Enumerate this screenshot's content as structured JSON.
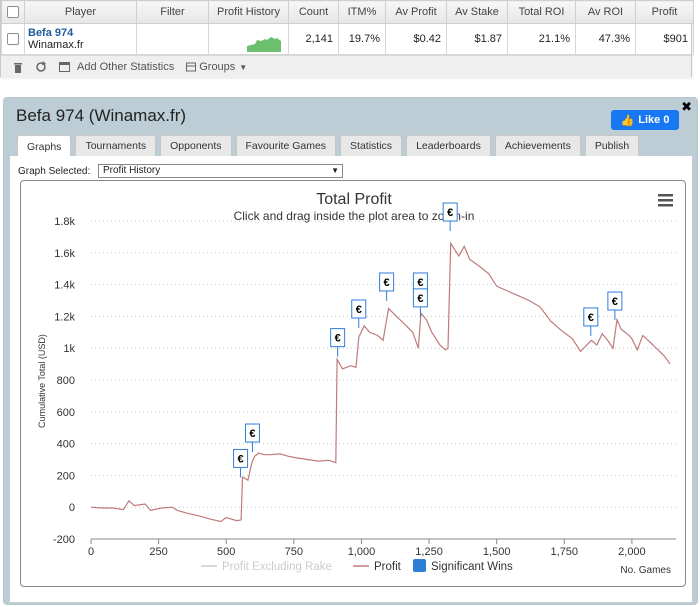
{
  "top_table": {
    "headers": [
      "Player",
      "Filter",
      "Profit History",
      "Count",
      "ITM%",
      "Av Profit",
      "Av Stake",
      "Total ROI",
      "Av ROI",
      "Profit"
    ],
    "row": {
      "player_name": "Befa 974",
      "player_site": "Winamax.fr",
      "filter": "",
      "count": "2,141",
      "itm": "19.7%",
      "av_profit": "$0.42",
      "av_stake": "$1.87",
      "total_roi": "21.1%",
      "av_roi": "47.3%",
      "profit": "$901"
    },
    "sparkline_color": "#5cb85c"
  },
  "footer": {
    "add_stats_label": "Add Other Statistics",
    "groups_label": "Groups"
  },
  "panel": {
    "title": "Befa 974 (Winamax.fr)",
    "like_label": "Like 0",
    "tabs": [
      "Graphs",
      "Tournaments",
      "Opponents",
      "Favourite Games",
      "Statistics",
      "Leaderboards",
      "Achievements",
      "Publish"
    ],
    "active_tab": "Graphs",
    "graph_selected_label": "Graph Selected:",
    "graph_selected_value": "Profit History"
  },
  "chart_data": {
    "type": "line",
    "title": "Total Profit",
    "subtitle": "Click and drag inside the plot area to zoom-in",
    "ylabel": "Cumulative Total (USD)",
    "xlabel": "No. Games",
    "xlim": [
      0,
      2200
    ],
    "ylim": [
      -200,
      1800
    ],
    "x_ticks": [
      0,
      250,
      500,
      750,
      1000,
      1250,
      1500,
      1750,
      2000
    ],
    "x_tick_labels": [
      "0",
      "250",
      "500",
      "750",
      "1,000",
      "1,250",
      "1,500",
      "1,750",
      "2,000"
    ],
    "y_ticks": [
      -200,
      0,
      200,
      400,
      600,
      800,
      1000,
      1200,
      1400,
      1600,
      1800
    ],
    "y_tick_labels": [
      "-200",
      "0",
      "200",
      "400",
      "600",
      "800",
      "1k",
      "1.2k",
      "1.4k",
      "1.6k",
      "1.8k"
    ],
    "grid": true,
    "legend": [
      "Profit Excluding Rake",
      "Profit",
      "Significant Wins"
    ],
    "series": [
      {
        "name": "Profit",
        "color": "#c07a7a",
        "points": [
          [
            0,
            0
          ],
          [
            40,
            -5
          ],
          [
            80,
            -5
          ],
          [
            120,
            -15
          ],
          [
            140,
            40
          ],
          [
            160,
            10
          ],
          [
            200,
            20
          ],
          [
            220,
            -20
          ],
          [
            260,
            -5
          ],
          [
            300,
            0
          ],
          [
            320,
            -20
          ],
          [
            360,
            -40
          ],
          [
            400,
            -55
          ],
          [
            440,
            -75
          ],
          [
            480,
            -90
          ],
          [
            500,
            -65
          ],
          [
            540,
            -85
          ],
          [
            555,
            -80
          ],
          [
            560,
            190
          ],
          [
            580,
            170
          ],
          [
            595,
            280
          ],
          [
            605,
            320
          ],
          [
            620,
            340
          ],
          [
            640,
            330
          ],
          [
            660,
            330
          ],
          [
            700,
            335
          ],
          [
            730,
            320
          ],
          [
            760,
            310
          ],
          [
            800,
            300
          ],
          [
            840,
            290
          ],
          [
            880,
            295
          ],
          [
            905,
            280
          ],
          [
            910,
            930
          ],
          [
            930,
            870
          ],
          [
            960,
            890
          ],
          [
            980,
            880
          ],
          [
            990,
            1070
          ],
          [
            1010,
            1140
          ],
          [
            1030,
            1100
          ],
          [
            1060,
            1080
          ],
          [
            1080,
            1050
          ],
          [
            1100,
            1250
          ],
          [
            1130,
            1200
          ],
          [
            1160,
            1150
          ],
          [
            1190,
            1100
          ],
          [
            1210,
            1000
          ],
          [
            1220,
            1220
          ],
          [
            1240,
            1180
          ],
          [
            1260,
            1100
          ],
          [
            1290,
            1020
          ],
          [
            1310,
            990
          ],
          [
            1320,
            1000
          ],
          [
            1330,
            1660
          ],
          [
            1360,
            1580
          ],
          [
            1380,
            1640
          ],
          [
            1400,
            1560
          ],
          [
            1440,
            1510
          ],
          [
            1470,
            1470
          ],
          [
            1500,
            1390
          ],
          [
            1540,
            1360
          ],
          [
            1580,
            1330
          ],
          [
            1620,
            1300
          ],
          [
            1660,
            1260
          ],
          [
            1700,
            1170
          ],
          [
            1740,
            1110
          ],
          [
            1780,
            1060
          ],
          [
            1810,
            980
          ],
          [
            1850,
            1050
          ],
          [
            1870,
            1020
          ],
          [
            1890,
            1090
          ],
          [
            1910,
            1050
          ],
          [
            1930,
            1000
          ],
          [
            1945,
            1180
          ],
          [
            1960,
            1120
          ],
          [
            1990,
            1080
          ],
          [
            2000,
            1060
          ],
          [
            2020,
            990
          ],
          [
            2040,
            1080
          ],
          [
            2060,
            1050
          ],
          [
            2090,
            1000
          ],
          [
            2120,
            950
          ],
          [
            2141,
            901
          ]
        ]
      }
    ],
    "significant_wins": [
      [
        553,
        250
      ],
      [
        597,
        410
      ],
      [
        912,
        1010
      ],
      [
        990,
        1190
      ],
      [
        1093,
        1360
      ],
      [
        1218,
        1360
      ],
      [
        1218,
        1260
      ],
      [
        1328,
        1800
      ],
      [
        1848,
        1140
      ],
      [
        1937,
        1240
      ]
    ]
  }
}
